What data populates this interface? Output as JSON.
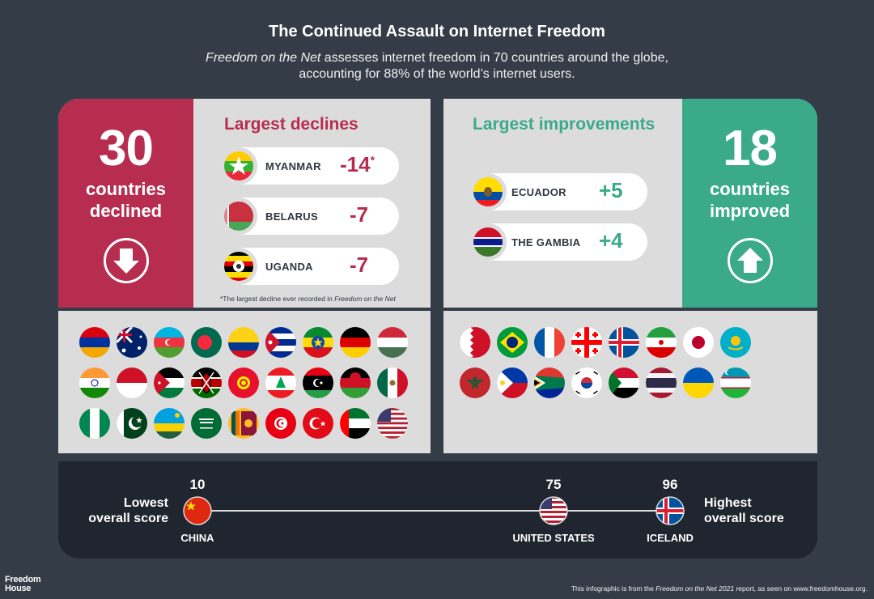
{
  "title": "The Continued Assault on Internet Freedom",
  "subtitle": {
    "report_name": "Freedom on the Net",
    "line1_rest": " assesses internet freedom in 70 countries around the globe,",
    "line2": "accounting for 88% of the world’s internet users."
  },
  "declines": {
    "count": "30",
    "label_line1": "countries",
    "label_line2": "declined",
    "arrow_icon": "down-arrow-icon",
    "color": "#b62d4f",
    "header": "Largest declines",
    "items": [
      {
        "country": "MYANMAR",
        "change": "-14",
        "mark": "*"
      },
      {
        "country": "BELARUS",
        "change": "-7"
      },
      {
        "country": "UGANDA",
        "change": "-7"
      }
    ],
    "note_prefix": "*The largest decline ever recorded in ",
    "note_italic": "Freedom on the Net",
    "flags": [
      "Armenia",
      "Australia",
      "Azerbaijan",
      "Bangladesh",
      "Colombia",
      "Cuba",
      "Ethiopia",
      "Germany",
      "Hungary",
      "India",
      "Indonesia",
      "Jordan",
      "Kenya",
      "Kyrgyzstan",
      "Lebanon",
      "Libya",
      "Malawi",
      "Mexico",
      "Nigeria",
      "Pakistan",
      "Rwanda",
      "Saudi Arabia",
      "Sri Lanka",
      "Tunisia",
      "Turkey",
      "United Arab Emirates",
      "United States"
    ]
  },
  "improvements": {
    "count": "18",
    "label_line1": "countries",
    "label_line2": "improved",
    "arrow_icon": "up-arrow-icon",
    "color": "#3aaa89",
    "header": "Largest improvements",
    "items": [
      {
        "country": "ECUADOR",
        "change": "+5"
      },
      {
        "country": "THE GAMBIA",
        "change": "+4"
      }
    ],
    "flags": [
      "Bahrain",
      "Brazil",
      "France",
      "Georgia",
      "Iceland",
      "Iran",
      "Japan",
      "Kazakhstan",
      "Morocco",
      "Philippines",
      "South Africa",
      "South Korea",
      "Sudan",
      "Thailand",
      "Ukraine",
      "Uzbekistan"
    ]
  },
  "scores": {
    "lowest_label_line1": "Lowest",
    "lowest_label_line2": "overall score",
    "highest_label_line1": "Highest",
    "highest_label_line2": "overall score",
    "markers": [
      {
        "country": "CHINA",
        "score": "10"
      },
      {
        "country": "UNITED STATES",
        "score": "75"
      },
      {
        "country": "ICELAND",
        "score": "96"
      }
    ]
  },
  "logo": {
    "line1": "Freedom",
    "line2": "House"
  },
  "footer": {
    "prefix": "This infographic is from the ",
    "report_italic": "Freedom on the Net 2021",
    "suffix": " report, as seen on www.freedomhouse.org."
  }
}
